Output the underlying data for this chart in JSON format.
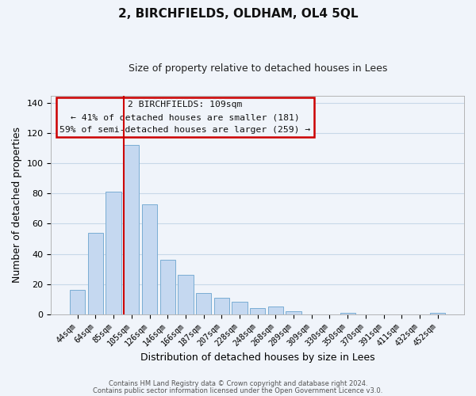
{
  "title": "2, BIRCHFIELDS, OLDHAM, OL4 5QL",
  "subtitle": "Size of property relative to detached houses in Lees",
  "xlabel": "Distribution of detached houses by size in Lees",
  "ylabel": "Number of detached properties",
  "bar_color": "#c5d8f0",
  "bar_edge_color": "#7aadd4",
  "highlight_color": "#cc0000",
  "categories": [
    "44sqm",
    "64sqm",
    "85sqm",
    "105sqm",
    "126sqm",
    "146sqm",
    "166sqm",
    "187sqm",
    "207sqm",
    "228sqm",
    "248sqm",
    "268sqm",
    "289sqm",
    "309sqm",
    "330sqm",
    "350sqm",
    "370sqm",
    "391sqm",
    "411sqm",
    "432sqm",
    "452sqm"
  ],
  "values": [
    16,
    54,
    81,
    112,
    73,
    36,
    26,
    14,
    11,
    8,
    4,
    5,
    2,
    0,
    0,
    1,
    0,
    0,
    0,
    0,
    1
  ],
  "highlight_index": 3,
  "ylim": [
    0,
    145
  ],
  "yticks": [
    0,
    20,
    40,
    60,
    80,
    100,
    120,
    140
  ],
  "annotation_title": "2 BIRCHFIELDS: 109sqm",
  "annotation_line1": "← 41% of detached houses are smaller (181)",
  "annotation_line2": "59% of semi-detached houses are larger (259) →",
  "footnote1": "Contains HM Land Registry data © Crown copyright and database right 2024.",
  "footnote2": "Contains public sector information licensed under the Open Government Licence v3.0.",
  "background_color": "#f0f4fa",
  "grid_color": "#c8d8e8"
}
